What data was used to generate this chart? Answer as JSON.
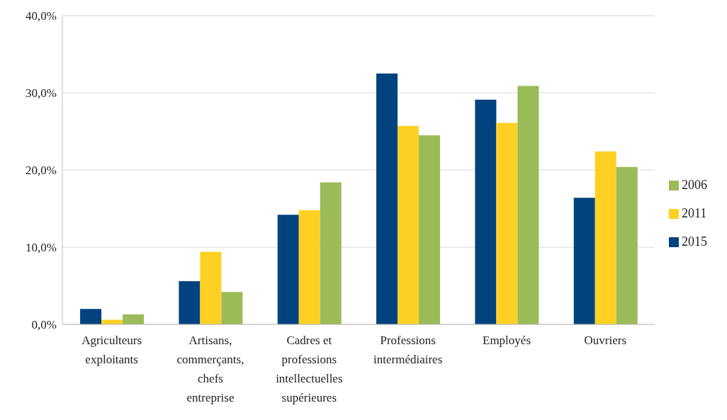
{
  "chart_data": {
    "type": "bar",
    "categories": [
      "Agriculteurs exploitants",
      "Artisans, commerçants, chefs entreprise",
      "Cadres et professions intellectuelles supérieures",
      "Professions intermédiaires",
      "Employés",
      "Ouvriers"
    ],
    "series": [
      {
        "name": "2015",
        "color": "#00437f",
        "values": [
          2.0,
          5.6,
          14.2,
          32.5,
          29.1,
          16.4
        ]
      },
      {
        "name": "2011",
        "color": "#fdd023",
        "values": [
          0.6,
          9.4,
          14.8,
          25.7,
          26.1,
          22.4
        ]
      },
      {
        "name": "2006",
        "color": "#9bbb59",
        "values": [
          1.3,
          4.2,
          18.4,
          24.5,
          30.9,
          20.4
        ]
      }
    ],
    "ylim": [
      0,
      40
    ],
    "yticks": [
      {
        "value": 0,
        "label": "0,0%"
      },
      {
        "value": 10,
        "label": "10,0%"
      },
      {
        "value": 20,
        "label": "20,0%"
      },
      {
        "value": 30,
        "label": "30,0%"
      },
      {
        "value": 40,
        "label": "40,0%"
      }
    ],
    "grid": "y",
    "legend": "right"
  }
}
